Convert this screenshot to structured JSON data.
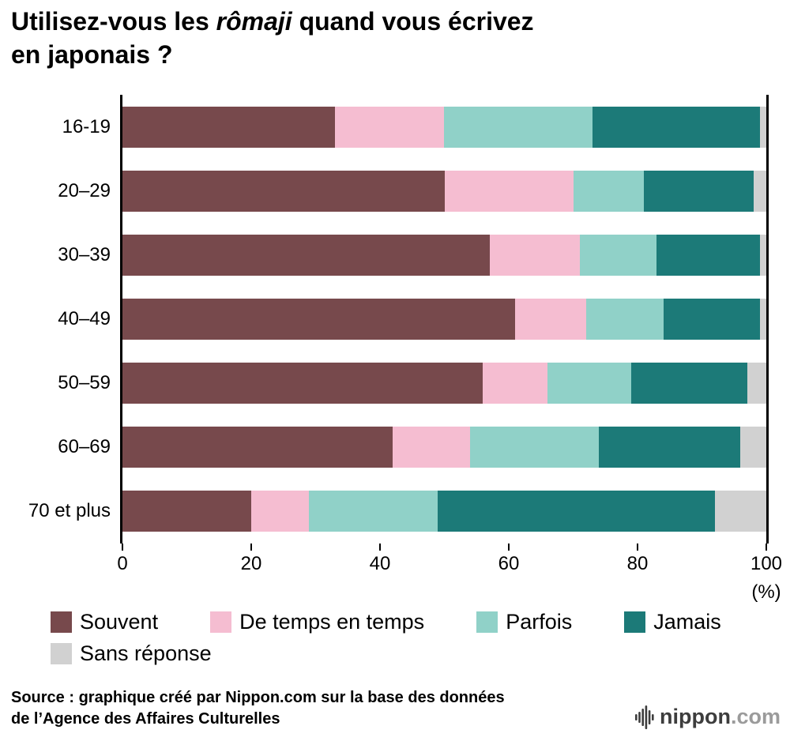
{
  "title": {
    "line1_prefix": "Utilisez-vous les ",
    "line1_italic": "rômaji",
    "line1_suffix": " quand vous écrivez",
    "line2": "en japonais ?"
  },
  "chart_data": {
    "type": "bar",
    "orientation": "horizontal",
    "stacked": true,
    "categories": [
      "16-19",
      "20–29",
      "30–39",
      "40–49",
      "50–59",
      "60–69",
      "70 et plus"
    ],
    "series": [
      {
        "name": "Souvent",
        "color": "#77494c",
        "values": [
          33,
          50,
          57,
          61,
          56,
          42,
          20
        ]
      },
      {
        "name": "De temps en temps",
        "color": "#f5bdd1",
        "values": [
          17,
          20,
          14,
          11,
          10,
          12,
          9
        ]
      },
      {
        "name": "Parfois",
        "color": "#90d1c8",
        "values": [
          23,
          11,
          12,
          12,
          13,
          20,
          20
        ]
      },
      {
        "name": "Jamais",
        "color": "#1c7a78",
        "values": [
          26,
          17,
          16,
          15,
          18,
          22,
          43
        ]
      },
      {
        "name": "Sans réponse",
        "color": "#d1d1d1",
        "values": [
          1,
          2,
          1,
          1,
          3,
          4,
          8
        ]
      }
    ],
    "xlim": [
      0,
      100
    ],
    "xticks": [
      0,
      20,
      40,
      60,
      80,
      100
    ],
    "x_unit": "(%)",
    "grid": false,
    "legend_position": "bottom"
  },
  "source": {
    "line1": "Source : graphique créé par Nippon.com sur la base des données",
    "line2": "de l’Agence des Affaires Culturelles"
  },
  "logo": {
    "name": "nippon",
    "tld": ".com"
  }
}
